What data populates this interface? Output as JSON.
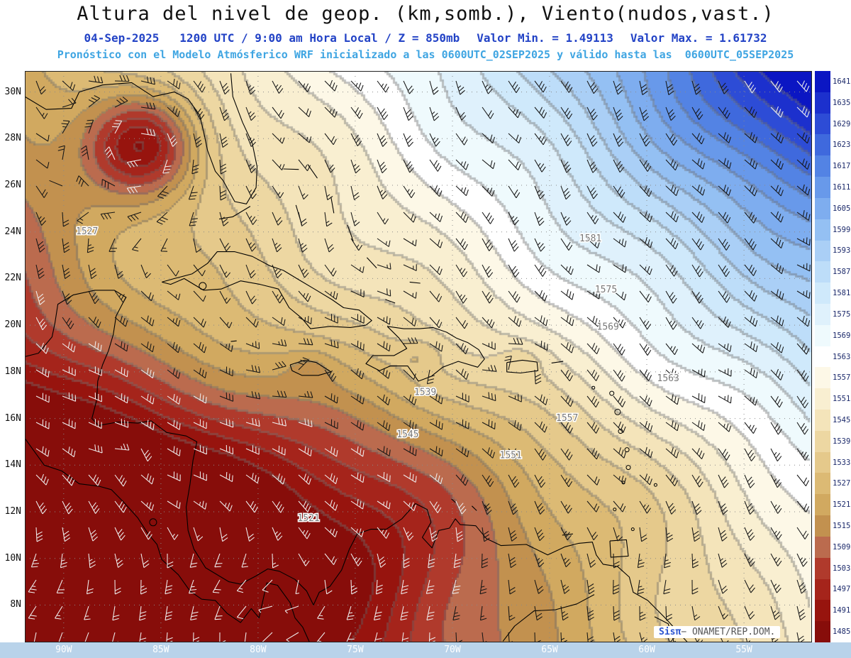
{
  "header": {
    "title": "Altura del nivel de geop. (km,somb.), Viento(nudos,vast.)",
    "date_line": {
      "datetime": "04-Sep-2025   1200 UTC / 9:00 am Hora Local / Z = 850mb",
      "valor_min": "Valor Min. = 1.49113",
      "valor_max": "Valor Max. = 1.61732"
    },
    "model_line": "Pronóstico con el Modelo Atmósferico WRF inicializado a las 0600UTC_02SEP2025 y válido hasta las  0600UTC_05SEP2025"
  },
  "watermark": {
    "brand": "Sisπ",
    "text": "− ONAMET/REP.DOM."
  },
  "colors": {
    "title": "#111111",
    "subtitle": "#2343c6",
    "model_line": "#3fa5e2",
    "axis_strip": "#b9d3ea",
    "lon_label": "#ffffff",
    "lat_label": "#111111",
    "colorbar_label": "#1c2a6b",
    "watermark_brand": "#2d55d0",
    "watermark_text": "#555555",
    "contour_line": "#787878",
    "barb_dark": "#151515",
    "barb_light": "#f0f0f0"
  },
  "chart_data": {
    "type": "heatmap",
    "title": "Altura del nivel de geop. (km,somb.), Viento(nudos,vast.)",
    "variable": "Geopotential height at 850mb (shaded) with wind barbs (knots)",
    "level": "850mb",
    "valid_time": "04-Sep-2025 1200 UTC / 9:00 am Hora Local",
    "model": "WRF",
    "init_time": "0600UTC_02SEP2025",
    "valid_until": "0600UTC_05SEP2025",
    "value_min": 1.49113,
    "value_max": 1.61732,
    "lon_range": [
      -92,
      -51.5
    ],
    "lat_range": [
      6.4,
      30.9
    ],
    "lon_ticks": [
      "90W",
      "85W",
      "80W",
      "75W",
      "70W",
      "65W",
      "60W",
      "55W"
    ],
    "lat_ticks": [
      "30N",
      "28N",
      "26N",
      "24N",
      "22N",
      "20N",
      "18N",
      "16N",
      "14N",
      "12N",
      "10N",
      "8N"
    ],
    "colorbar": {
      "levels": [
        1641,
        1635,
        1629,
        1623,
        1617,
        1611,
        1605,
        1599,
        1593,
        1587,
        1581,
        1575,
        1569,
        1563,
        1557,
        1551,
        1545,
        1539,
        1533,
        1527,
        1521,
        1515,
        1509,
        1503,
        1497,
        1491,
        1485
      ],
      "colors": [
        "#0b16c3",
        "#1c30cd",
        "#2d4cd6",
        "#3f69dd",
        "#5383e4",
        "#6899ea",
        "#7eadef",
        "#94c0f3",
        "#aacff6",
        "#bdddf9",
        "#cfe9fb",
        "#dff1fc",
        "#effafd",
        "#ffffff",
        "#fdf8e7",
        "#f9efd1",
        "#f4e4ba",
        "#edd7a2",
        "#e5c98b",
        "#dcba74",
        "#d1a960",
        "#c2914f",
        "#bb6b4e",
        "#b03a2c",
        "#a5241b",
        "#97140e",
        "#870d0a"
      ]
    },
    "contour_labels": [
      {
        "value": "1527",
        "lon": -88.8,
        "lat": 23.9
      },
      {
        "value": "1581",
        "lon": -62.9,
        "lat": 23.6
      },
      {
        "value": "1575",
        "lon": -62.1,
        "lat": 21.4
      },
      {
        "value": "1569",
        "lon": -62.0,
        "lat": 19.8
      },
      {
        "value": "1563",
        "lon": -58.9,
        "lat": 17.6
      },
      {
        "value": "1557",
        "lon": -64.1,
        "lat": 15.9
      },
      {
        "value": "1551",
        "lon": -67.0,
        "lat": 14.3
      },
      {
        "value": "1545",
        "lon": -72.3,
        "lat": 15.2
      },
      {
        "value": "1539",
        "lon": -71.4,
        "lat": 17.0
      },
      {
        "value": "1521",
        "lon": -77.4,
        "lat": 11.6
      }
    ]
  }
}
